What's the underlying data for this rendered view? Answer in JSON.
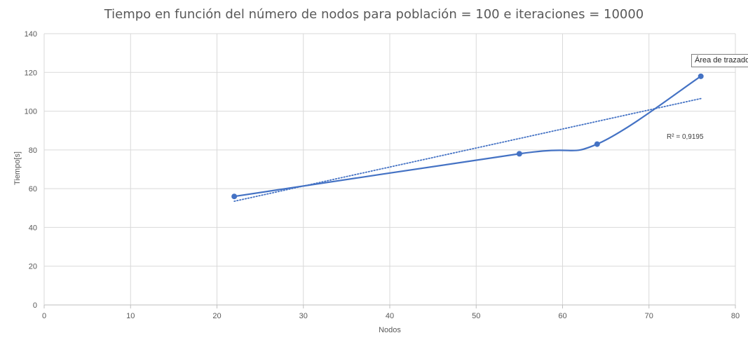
{
  "chart_data": {
    "type": "scatter",
    "title": "Tiempo en función del número de nodos para población = 100 e iteraciones = 10000",
    "xlabel": "Nodos",
    "ylabel": "Tiempo[s]",
    "xlim": [
      0,
      80
    ],
    "ylim": [
      0,
      140
    ],
    "x_ticks": [
      "0",
      "10",
      "20",
      "30",
      "40",
      "50",
      "60",
      "70",
      "80"
    ],
    "y_ticks": [
      "0",
      "20",
      "40",
      "60",
      "80",
      "100",
      "120",
      "140"
    ],
    "grid": true,
    "series": [
      {
        "x": [
          22,
          55,
          64,
          76
        ],
        "y": [
          56,
          78,
          83,
          118
        ],
        "line": "smooth",
        "color": "#4472c4"
      }
    ],
    "trendline": {
      "type": "linear",
      "x_range": [
        22,
        76
      ],
      "y_range": [
        53.5,
        106.5
      ],
      "color": "#4472c4",
      "style": "dotted",
      "r2_label": "R² = 0,9195"
    },
    "tooltip": "Área de trazado"
  }
}
